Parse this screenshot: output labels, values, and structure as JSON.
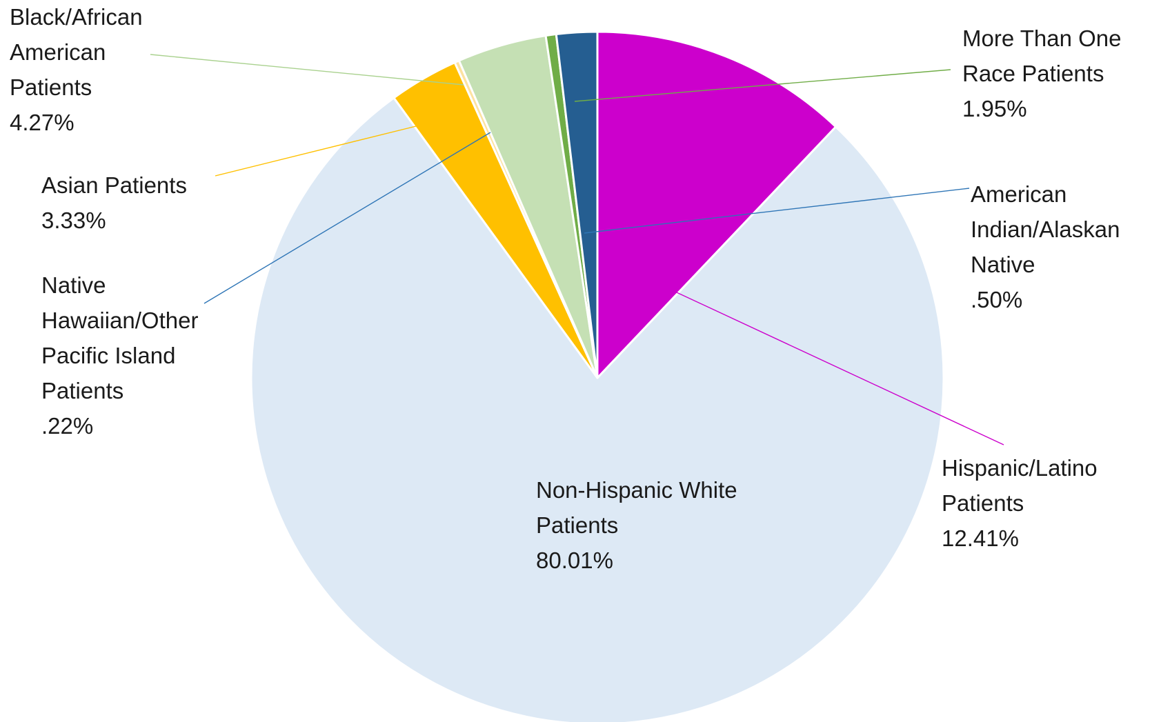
{
  "chart_data": {
    "type": "pie",
    "slices": [
      {
        "name": "Hispanic/Latino Patients",
        "value": 12.41,
        "label_lines": [
          "Hispanic/Latino",
          "Patients",
          "12.41%"
        ],
        "color": "#cc00cc"
      },
      {
        "name": "Non-Hispanic White Patients",
        "value": 80.01,
        "label_lines": [
          "Non-Hispanic White",
          "Patients",
          "80.01%"
        ],
        "color": "#dde9f5"
      },
      {
        "name": "Asian Patients",
        "value": 3.33,
        "label_lines": [
          "Asian Patients",
          "3.33%"
        ],
        "color": "#ffc000"
      },
      {
        "name": "Native Hawaiian/Other Pacific Island Patients",
        "value": 0.22,
        "label_lines": [
          "Native",
          "Hawaiian/Other",
          "Pacific Island",
          "Patients",
          ".22%"
        ],
        "color": "#fde2a0"
      },
      {
        "name": "Black/African American Patients",
        "value": 4.27,
        "label_lines": [
          "Black/African",
          "American",
          "Patients",
          "4.27%"
        ],
        "color": "#c5e0b4"
      },
      {
        "name": "American Indian/Alaskan Native",
        "value": 0.5,
        "label_lines": [
          "American",
          "Indian/Alaskan",
          "Native",
          ".50%"
        ],
        "color": "#70ad47"
      },
      {
        "name": "More Than One Race Patients",
        "value": 1.95,
        "label_lines": [
          "More Than One",
          "Race Patients",
          "1.95%"
        ],
        "color": "#255e91"
      }
    ],
    "leader_colors": {
      "Hispanic/Latino Patients": "#cc00cc",
      "Asian Patients": "#ffc000",
      "Native Hawaiian/Other Pacific Island Patients": "#2e75b6",
      "Black/African American Patients": "#a9d18e",
      "American Indian/Alaskan Native": "#2e75b6",
      "More Than One Race Patients": "#70ad47"
    },
    "start_angle": "12 o'clock",
    "direction": "clockwise"
  }
}
